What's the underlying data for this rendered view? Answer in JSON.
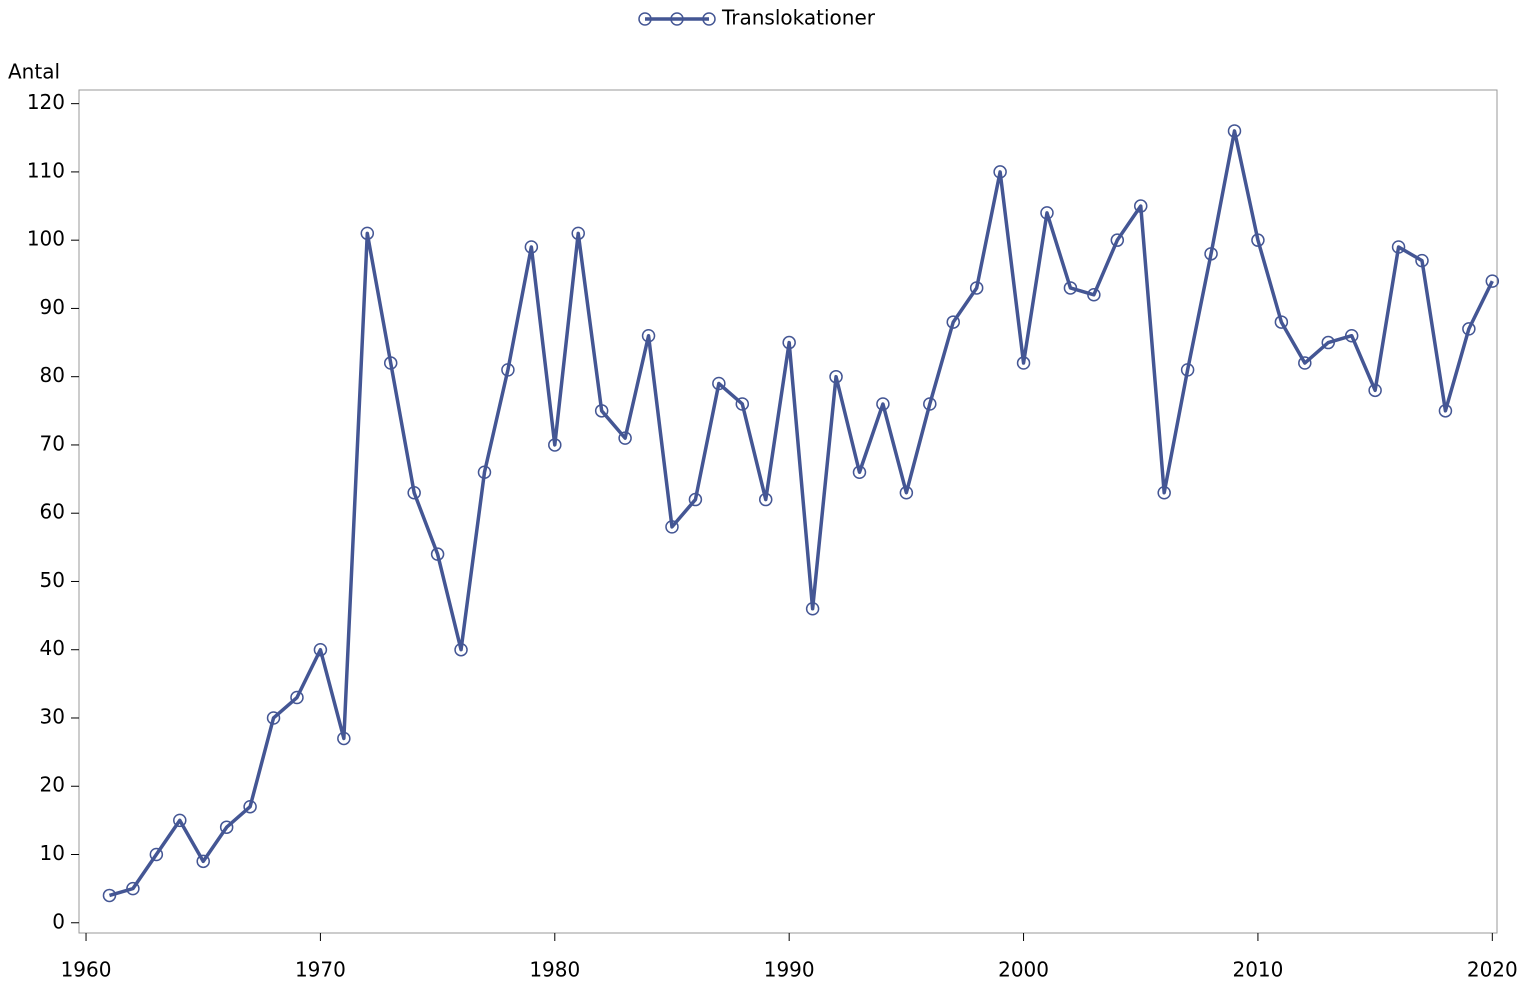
{
  "chart_data": {
    "type": "line",
    "y_label": "Antal",
    "legend": "top",
    "x": [
      1961,
      1962,
      1963,
      1964,
      1965,
      1966,
      1967,
      1968,
      1969,
      1970,
      1971,
      1972,
      1973,
      1974,
      1975,
      1976,
      1977,
      1978,
      1979,
      1980,
      1981,
      1982,
      1983,
      1984,
      1985,
      1986,
      1987,
      1988,
      1989,
      1990,
      1991,
      1992,
      1993,
      1994,
      1995,
      1996,
      1997,
      1998,
      1999,
      2000,
      2001,
      2002,
      2003,
      2004,
      2005,
      2006,
      2007,
      2008,
      2009,
      2010,
      2011,
      2012,
      2013,
      2014,
      2015,
      2016,
      2017,
      2018,
      2019,
      2020
    ],
    "series": [
      {
        "name": "Translokationer",
        "color": "#445694",
        "values": [
          4,
          5,
          10,
          15,
          9,
          14,
          17,
          30,
          33,
          40,
          27,
          101,
          82,
          63,
          54,
          40,
          66,
          81,
          99,
          70,
          101,
          75,
          71,
          86,
          58,
          62,
          79,
          76,
          62,
          85,
          46,
          80,
          66,
          76,
          63,
          76,
          88,
          93,
          110,
          82,
          104,
          93,
          92,
          100,
          105,
          63,
          81,
          98,
          116,
          100,
          88,
          82,
          85,
          86,
          78,
          99,
          97,
          75,
          87,
          94
        ]
      }
    ],
    "xlim": [
      1959.7,
      2020.2
    ],
    "xticks": [
      1960,
      1970,
      1980,
      1990,
      2000,
      2010,
      2020
    ],
    "ylim": [
      -1.5,
      122
    ],
    "yticks": [
      0,
      10,
      20,
      30,
      40,
      50,
      60,
      70,
      80,
      90,
      100,
      110,
      120
    ]
  }
}
